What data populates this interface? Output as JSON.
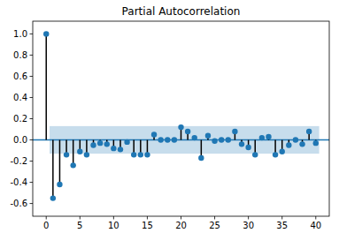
{
  "chart_data": {
    "type": "stem",
    "title": "Partial Autocorrelation",
    "x": [
      0,
      1,
      2,
      3,
      4,
      5,
      6,
      7,
      8,
      9,
      10,
      11,
      12,
      13,
      14,
      15,
      16,
      17,
      18,
      19,
      20,
      21,
      22,
      23,
      24,
      25,
      26,
      27,
      28,
      29,
      30,
      31,
      32,
      33,
      34,
      35,
      36,
      37,
      38,
      39,
      40
    ],
    "values": [
      1.0,
      -0.55,
      -0.42,
      -0.14,
      -0.24,
      -0.11,
      -0.14,
      -0.05,
      -0.03,
      -0.04,
      -0.08,
      -0.09,
      -0.02,
      -0.14,
      -0.14,
      -0.14,
      0.05,
      0.0,
      0.0,
      0.0,
      0.12,
      0.08,
      0.02,
      -0.17,
      0.04,
      -0.01,
      0.0,
      0.0,
      0.08,
      -0.04,
      -0.07,
      -0.14,
      0.02,
      0.03,
      -0.14,
      -0.11,
      -0.05,
      0.0,
      -0.04,
      0.08,
      -0.03
    ],
    "color": "#1f77b4",
    "confidence_interval": [
      -0.13,
      0.13
    ],
    "xlim": [
      -2,
      42
    ],
    "ylim": [
      -0.72,
      1.12
    ],
    "xticks": [
      0,
      5,
      10,
      15,
      20,
      25,
      30,
      35,
      40
    ],
    "yticks": [
      {
        "value": -0.6,
        "label": "-0.6"
      },
      {
        "value": -0.4,
        "label": "-0.4"
      },
      {
        "value": -0.2,
        "label": "-0.2"
      },
      {
        "value": 0,
        "label": "0.0"
      },
      {
        "value": 0.2,
        "label": "0.2"
      },
      {
        "value": 0.4,
        "label": "0.4"
      },
      {
        "value": 0.6,
        "label": "0.6"
      },
      {
        "value": 0.8,
        "label": "0.8"
      },
      {
        "value": 1.0,
        "label": "1.0"
      }
    ]
  }
}
